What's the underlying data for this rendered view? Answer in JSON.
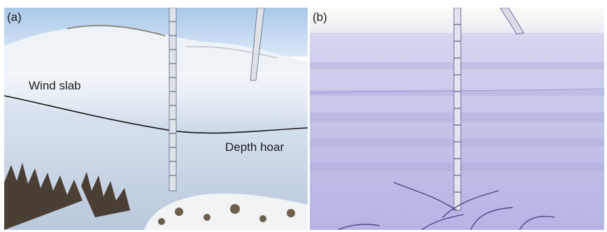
{
  "figure": {
    "panels": [
      {
        "id": "a",
        "label": "(a)",
        "annotations": [
          "Wind slab",
          "Depth hoar"
        ]
      },
      {
        "id": "b",
        "label": "(b)"
      }
    ]
  }
}
